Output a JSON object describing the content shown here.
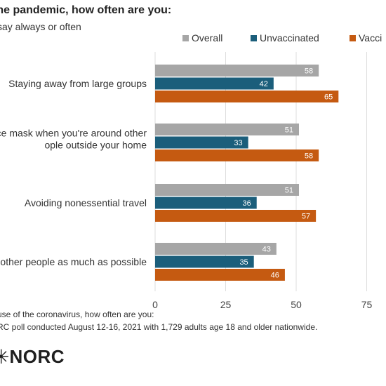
{
  "header": {
    "title": "the pandemic, how often are you:",
    "subtitle": "say always or often"
  },
  "chart_data": {
    "type": "bar",
    "orientation": "horizontal",
    "categories": [
      [
        "Staying away from large groups"
      ],
      [
        "ce mask when you're around other",
        "ople outside your home"
      ],
      [
        "Avoiding nonessential travel"
      ],
      [
        "other people as much as possible"
      ]
    ],
    "series": [
      {
        "name": "Overall",
        "color": "#a6a6a6",
        "values": [
          58,
          51,
          51,
          43
        ]
      },
      {
        "name": "Unvaccinated",
        "color": "#1b5e7b",
        "values": [
          42,
          33,
          36,
          35
        ]
      },
      {
        "name": "Vacci",
        "color": "#c55a11",
        "values": [
          65,
          58,
          57,
          46
        ]
      }
    ],
    "xlim": [
      0,
      100
    ],
    "xticks": [
      "0",
      "25",
      "50",
      "75"
    ],
    "grid": true,
    "legend": "top"
  },
  "footnotes": [
    "use of the coronavirus, how often are you:",
    "RC poll conducted August 12-16, 2021 with 1,729 adults age 18 and older nationwide."
  ],
  "logo": {
    "text": "NORC",
    "icon": "star-burst-icon"
  }
}
